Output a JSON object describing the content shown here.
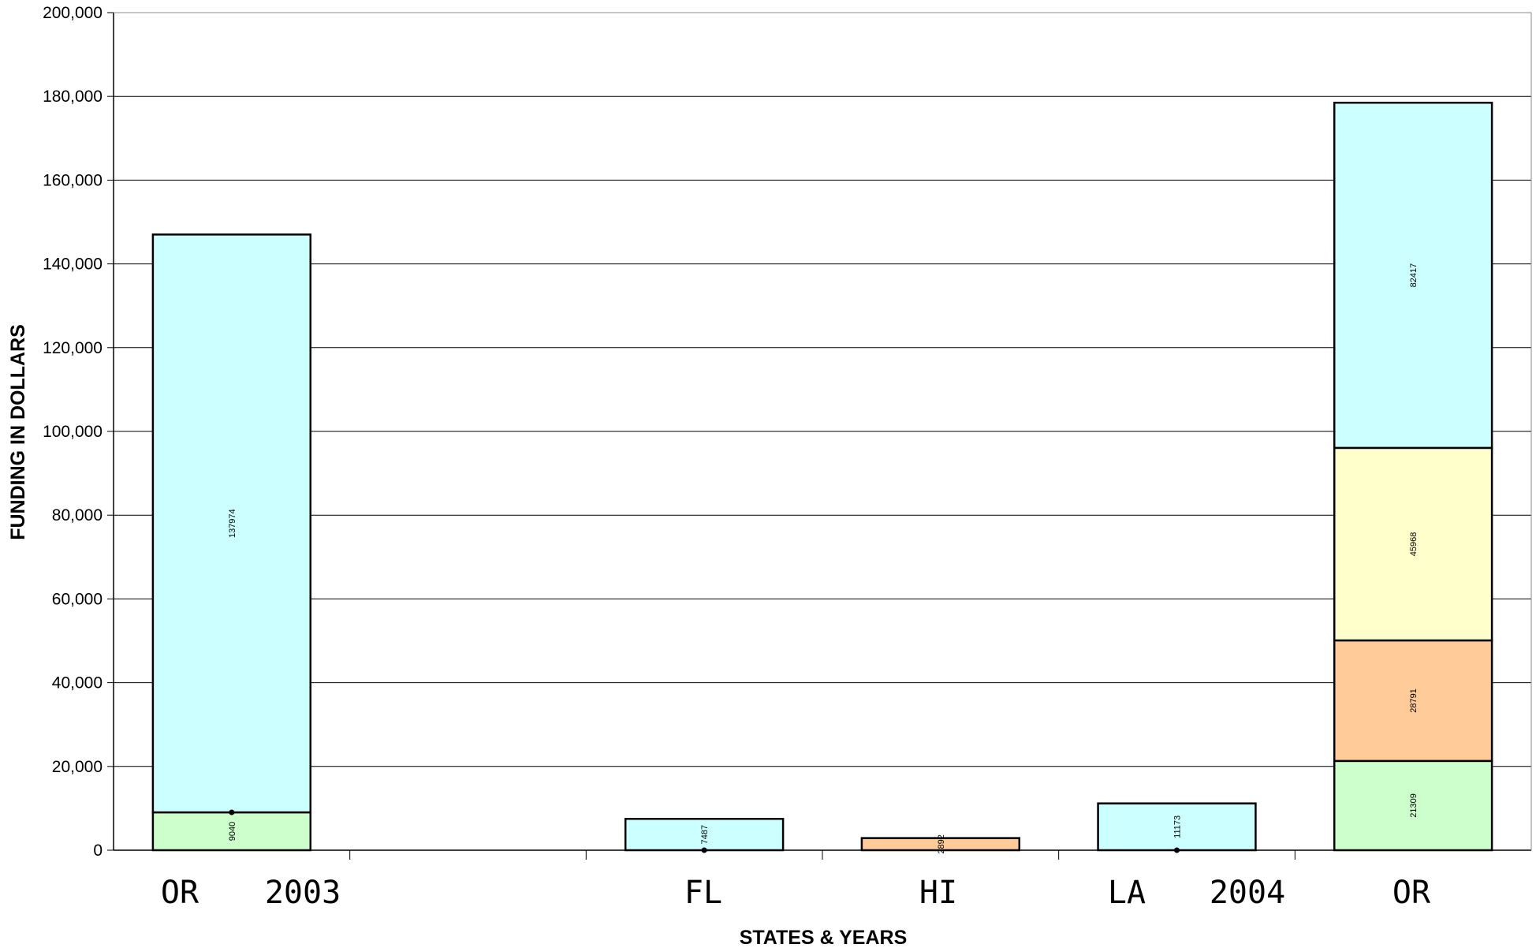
{
  "chart_data": {
    "type": "bar",
    "stacked": true,
    "xlabel": "STATES & YEARS",
    "ylabel": "FUNDING IN DOLLARS",
    "ylim": [
      0,
      200000
    ],
    "yticks": [
      0,
      20000,
      40000,
      60000,
      80000,
      100000,
      120000,
      140000,
      160000,
      180000,
      200000
    ],
    "ytick_labels": [
      "0",
      "20,000",
      "40,000",
      "60,000",
      "80,000",
      "100,000",
      "120,000",
      "140,000",
      "160,000",
      "180,000",
      "200,000"
    ],
    "x_tick_labels": [
      "OR",
      "2003",
      "FL",
      "HI",
      "LA",
      "2004",
      "OR"
    ],
    "grid": true,
    "colors": {
      "green": "#ccffcc",
      "orange": "#ffcc99",
      "yellow": "#ffffcc",
      "cyan": "#ccffff"
    },
    "bars": [
      {
        "label": "OR 2003",
        "segments": [
          {
            "value": 9040,
            "label": "9040",
            "color": "green"
          },
          {
            "value": 137974,
            "label": "137974",
            "color": "cyan"
          }
        ]
      },
      {
        "label": "FL",
        "segments": [
          {
            "value": 7487,
            "label": "7487",
            "color": "cyan"
          }
        ]
      },
      {
        "label": "HI",
        "segments": [
          {
            "value": 2892,
            "label": "2892",
            "color": "orange"
          }
        ]
      },
      {
        "label": "LA 2004",
        "segments": [
          {
            "value": 11173,
            "label": "11173",
            "color": "cyan"
          }
        ]
      },
      {
        "label": "OR",
        "segments": [
          {
            "value": 21309,
            "label": "21309",
            "color": "green"
          },
          {
            "value": 28791,
            "label": "28791",
            "color": "orange"
          },
          {
            "value": 45968,
            "label": "45968",
            "color": "yellow"
          },
          {
            "value": 82417,
            "label": "82417",
            "color": "cyan"
          }
        ]
      }
    ]
  }
}
